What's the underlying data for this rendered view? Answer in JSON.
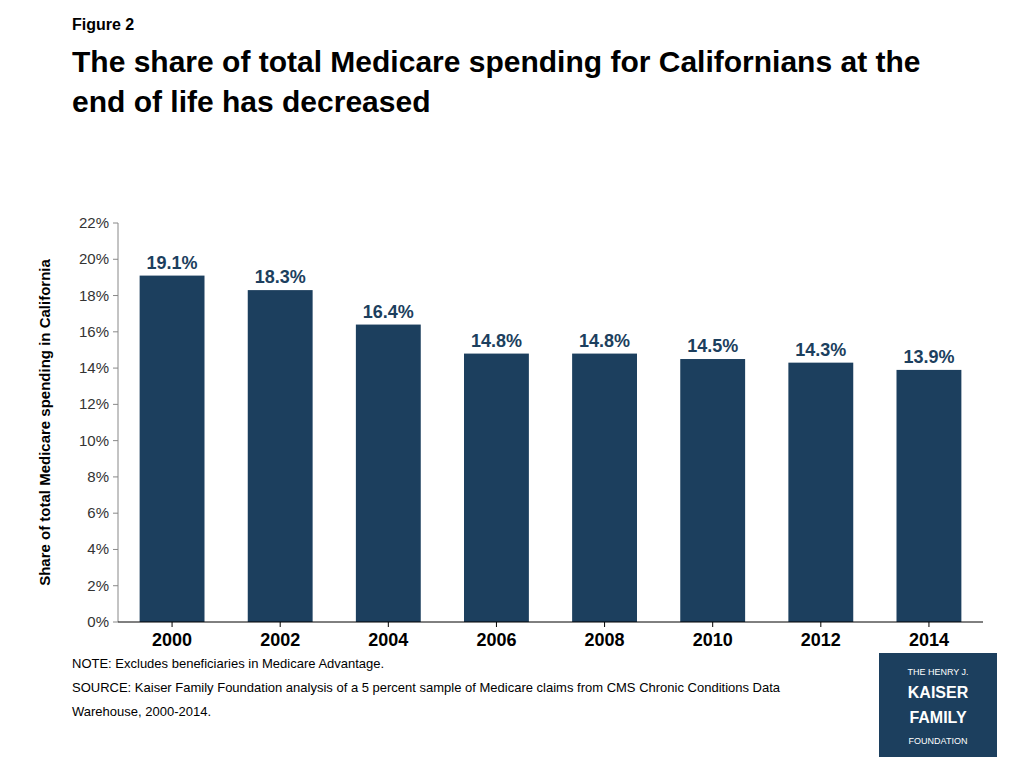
{
  "chart_data": {
    "type": "bar",
    "title": "The share of total Medicare spending for Californians at the end of life has decreased",
    "y_label": "Share of total Medicare spending in California",
    "categories": [
      "2000",
      "2002",
      "2004",
      "2006",
      "2008",
      "2010",
      "2012",
      "2014"
    ],
    "values": [
      19.1,
      18.3,
      16.4,
      14.8,
      14.8,
      14.5,
      14.3,
      13.9
    ],
    "value_labels": [
      "19.1%",
      "18.3%",
      "16.4%",
      "14.8%",
      "14.8%",
      "14.5%",
      "14.3%",
      "13.9%"
    ],
    "color": "#1c3f5e",
    "ylim": [
      0,
      22
    ],
    "yticks": [
      {
        "value": 0,
        "label": "0%"
      },
      {
        "value": 2,
        "label": "2%"
      },
      {
        "value": 4,
        "label": "4%"
      },
      {
        "value": 6,
        "label": "6%"
      },
      {
        "value": 8,
        "label": "8%"
      },
      {
        "value": 10,
        "label": "10%"
      },
      {
        "value": 12,
        "label": "12%"
      },
      {
        "value": 14,
        "label": "14%"
      },
      {
        "value": 16,
        "label": "16%"
      },
      {
        "value": 18,
        "label": "18%"
      },
      {
        "value": 20,
        "label": "20%"
      },
      {
        "value": 22,
        "label": "22%"
      }
    ],
    "grid": false,
    "data_labels": true,
    "annotations": [
      "Figure 2",
      "NOTE: Excludes beneficiaries in Medicare Advantage.",
      "SOURCE: Kaiser Family Foundation analysis of a 5 percent sample of Medicare claims from CMS Chronic Conditions Data",
      "Warehouse, 2000-2014.",
      "THE HENRY J.",
      "KAISER",
      "FAMILY",
      "FOUNDATION"
    ]
  }
}
